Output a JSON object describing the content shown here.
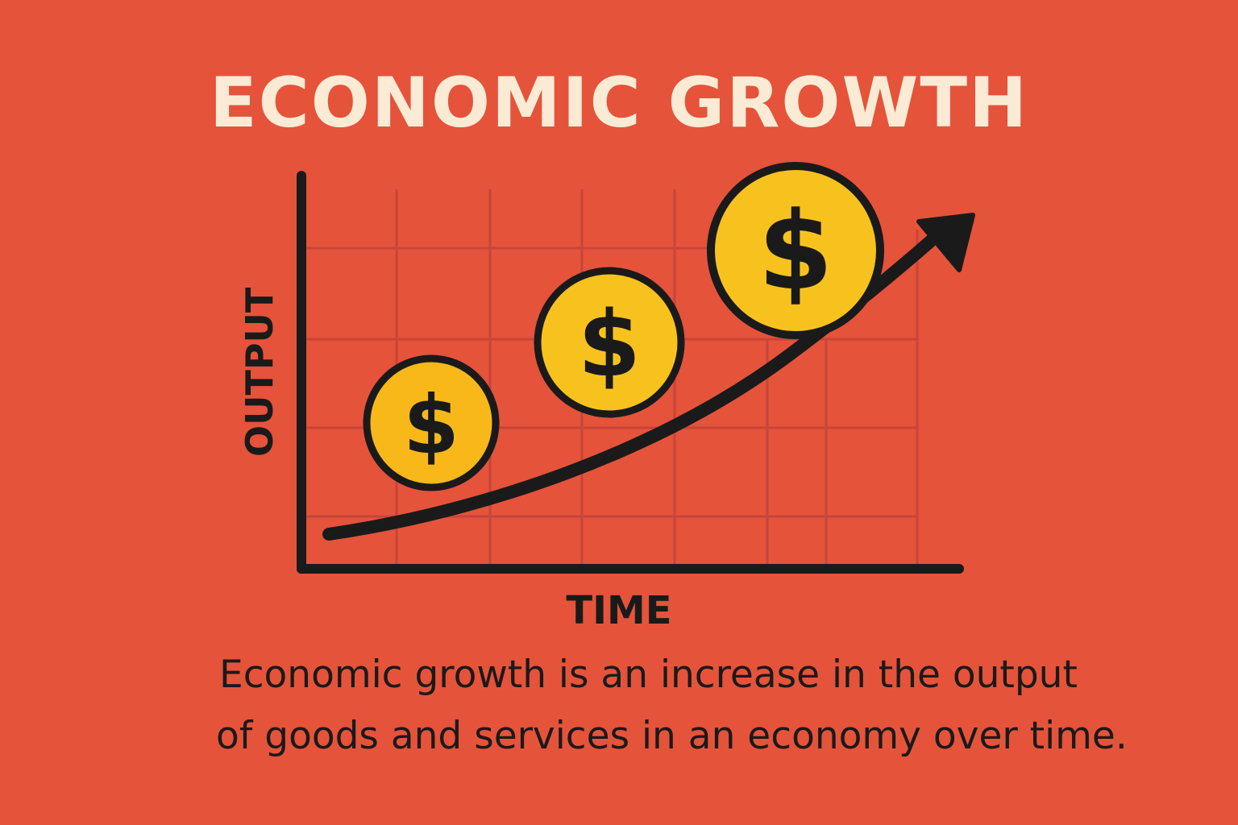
{
  "title": "ECONOMIC GROWTH",
  "axes": {
    "y_label": "OUTPUT",
    "x_label": "TIME"
  },
  "coins": [
    {
      "symbol": "$"
    },
    {
      "symbol": "$"
    },
    {
      "symbol": "$"
    }
  ],
  "caption": {
    "line1": "Economic growth is an increase in the output",
    "line2": "of goods and services in an economy over time."
  },
  "colors": {
    "background": "#E5533A",
    "grid": "#C7453A",
    "coin": "#F8C21E",
    "ink": "#1A1A1A",
    "title": "#FBEBD5"
  }
}
